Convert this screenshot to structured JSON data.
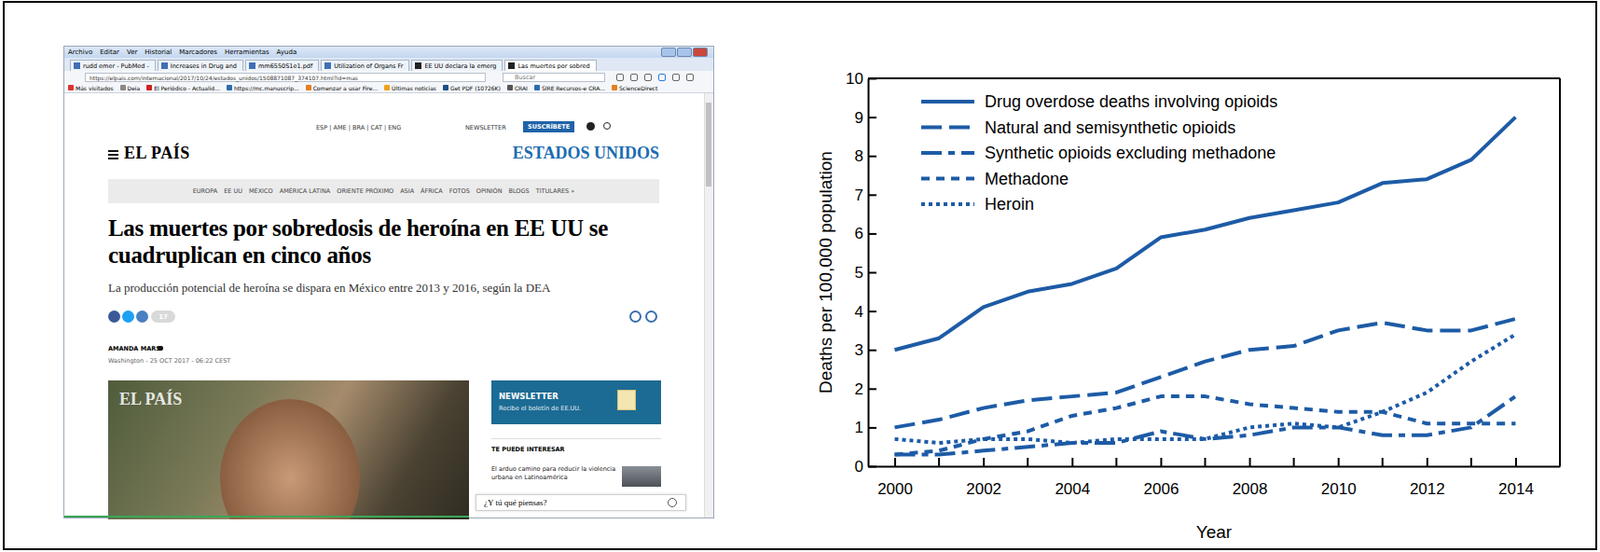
{
  "chart_data": {
    "type": "line",
    "x": [
      2000,
      2001,
      2002,
      2003,
      2004,
      2005,
      2006,
      2007,
      2008,
      2009,
      2010,
      2011,
      2012,
      2013,
      2014
    ],
    "series": [
      {
        "name": "Drug overdose deaths involving opioids",
        "color": "#1d5ba6",
        "line_style": "solid",
        "values": [
          3.0,
          3.3,
          4.1,
          4.5,
          4.7,
          5.1,
          5.9,
          6.1,
          6.4,
          6.6,
          6.8,
          7.3,
          7.4,
          7.9,
          9.0
        ]
      },
      {
        "name": "Natural and semisynthetic opioids",
        "color": "#1d5ba6",
        "line_style": "dashed",
        "values": [
          1.0,
          1.2,
          1.5,
          1.7,
          1.8,
          1.9,
          2.3,
          2.7,
          3.0,
          3.1,
          3.5,
          3.7,
          3.5,
          3.5,
          3.8
        ]
      },
      {
        "name": "Synthetic opioids excluding methadone",
        "color": "#1d5ba6",
        "line_style": "dashdot",
        "values": [
          0.3,
          0.3,
          0.4,
          0.5,
          0.6,
          0.6,
          0.9,
          0.7,
          0.8,
          1.0,
          1.0,
          0.8,
          0.8,
          1.0,
          1.8
        ]
      },
      {
        "name": "Methadone",
        "color": "#1d5ba6",
        "line_style": "short-dashed",
        "values": [
          0.3,
          0.4,
          0.7,
          0.9,
          1.3,
          1.5,
          1.8,
          1.8,
          1.6,
          1.5,
          1.4,
          1.4,
          1.1,
          1.1,
          1.1
        ]
      },
      {
        "name": "Heroin",
        "color": "#1d5ba6",
        "line_style": "dotted",
        "values": [
          0.7,
          0.6,
          0.7,
          0.7,
          0.6,
          0.7,
          0.7,
          0.7,
          1.0,
          1.1,
          1.0,
          1.4,
          1.9,
          2.7,
          3.4
        ]
      }
    ],
    "x_label": "Year",
    "y_label": "Deaths per 100,000 population",
    "xlim": [
      1999.4,
      2015
    ],
    "xticks": [
      2000,
      2002,
      2004,
      2006,
      2008,
      2010,
      2012,
      2014
    ],
    "ylim": [
      0,
      10
    ],
    "yticks": [
      0,
      1,
      2,
      3,
      4,
      5,
      6,
      7,
      8,
      9,
      10
    ],
    "legend": "upper left",
    "grid": false
  },
  "screenshot": {
    "browser": {
      "menu": [
        "Archivo",
        "Editar",
        "Ver",
        "Historial",
        "Marcadores",
        "Herramientas",
        "Ayuda"
      ],
      "tabs": [
        "rudd emer - PubMed -",
        "Increases in Drug and",
        "mm6550S1e1.pdf",
        "Utilization of Organs Fr",
        "EE UU declara la emerg",
        "Las muertes por sobred"
      ],
      "url": "https://elpais.com/internacional/2017/10/24/estados_unidos/1508871087_374107.html?id=mas",
      "search": "Buscar",
      "bookmarks": [
        "Más visitados",
        "Deia",
        "El Periódico - Actualid...",
        "https://mc.manuscrip...",
        "Comenzar a usar Fire...",
        "Últimas noticias",
        "Get PDF (10726K)",
        "CRAI",
        "SIRE Recursos-e CRA...",
        "ScienceDirect"
      ]
    },
    "page": {
      "editions": "ESP | AME | BRA | CAT | ENG",
      "newsletter_link": "NEWSLETTER",
      "subscribe": "SUSCRÍBETE",
      "logo": "EL PAÍS",
      "section": "ESTADOS UNIDOS",
      "nav": [
        "EUROPA",
        "EE UU",
        "MÉXICO",
        "AMÉRICA LATINA",
        "ORIENTE PRÓXIMO",
        "ASIA",
        "ÁFRICA",
        "FOTOS",
        "OPINIÓN",
        "BLOGS",
        "TITULARES »"
      ],
      "headline": "Las muertes por sobredosis de heroína en EE UU se cuadruplican en cinco años",
      "subheadline": "La producción potencial de heroína se dispara en México entre 2013 y 2016, según la DEA",
      "comments": 17,
      "author": "AMANDA MARS",
      "dateline": "Washington - 25 OCT 2017 - 06:22 CEST",
      "photo_watermark": "EL PAÍS",
      "newsletter_box": {
        "title": "NEWSLETTER",
        "text": "Recibe el boletín de EE.UU."
      },
      "related_heading": "TE PUEDE INTERESAR",
      "related": [
        "El arduo camino para reducir la violencia urbana en Latinoamérica"
      ],
      "feedback": "¿Y tú qué piensas?"
    }
  }
}
